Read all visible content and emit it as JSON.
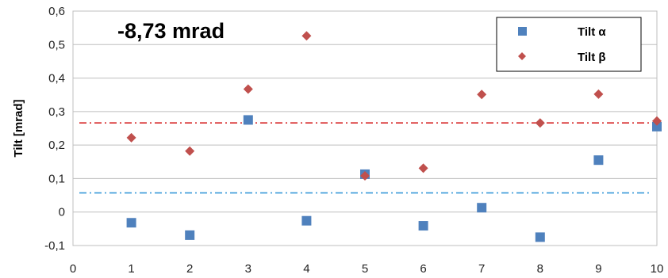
{
  "chart_data": {
    "type": "scatter",
    "title": "",
    "xlabel": "",
    "ylabel": "Tilt [mrad]",
    "annotation": "-8,73 mrad",
    "xlim": [
      0,
      10
    ],
    "ylim": [
      -0.1,
      0.6
    ],
    "x_ticks": [
      "0",
      "1",
      "2",
      "3",
      "4",
      "5",
      "6",
      "7",
      "8",
      "9",
      "10"
    ],
    "y_ticks": [
      "-0,1",
      "0",
      "0,1",
      "0,2",
      "0,3",
      "0,4",
      "0,5",
      "0,6"
    ],
    "grid": true,
    "legend_position": "top-right",
    "series": [
      {
        "name": "Tilt α",
        "marker": "square",
        "color": "#4f81bd",
        "x": [
          1,
          2,
          3,
          4,
          5,
          6,
          7,
          8,
          9,
          10
        ],
        "y": [
          -0.032,
          -0.069,
          0.275,
          -0.026,
          0.113,
          -0.041,
          0.013,
          -0.075,
          0.155,
          0.255
        ]
      },
      {
        "name": "Tilt β",
        "marker": "diamond",
        "color": "#c0504d",
        "x": [
          1,
          2,
          3,
          4,
          5,
          6,
          7,
          8,
          9,
          10
        ],
        "y": [
          0.222,
          0.182,
          0.367,
          0.526,
          0.108,
          0.131,
          0.351,
          0.266,
          0.352,
          0.272
        ]
      }
    ],
    "reference_lines": [
      {
        "y": 0.266,
        "color": "#d62728",
        "style": "dash-dot"
      },
      {
        "y": 0.057,
        "color": "#3a9ad9",
        "style": "dash-dot"
      }
    ]
  }
}
